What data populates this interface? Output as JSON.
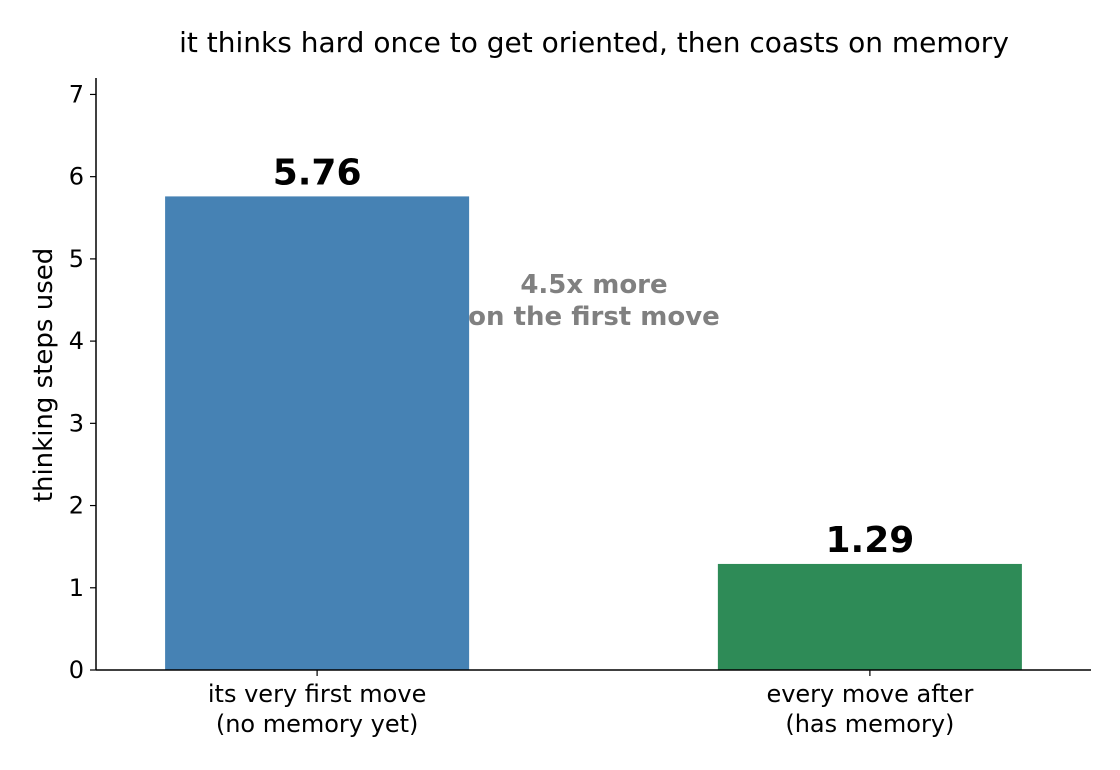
{
  "chart_data": {
    "type": "bar",
    "title": "it thinks hard once to get oriented, then coasts on memory",
    "xlabel": "",
    "ylabel": "thinking steps used",
    "ylim": [
      0,
      7.2
    ],
    "yticks": [
      0,
      1,
      2,
      3,
      4,
      5,
      6,
      7
    ],
    "categories": [
      [
        "its very first move",
        "(no memory yet)"
      ],
      [
        "every move after",
        "(has memory)"
      ]
    ],
    "values": [
      5.76,
      1.29
    ],
    "value_labels": [
      "5.76",
      "1.29"
    ],
    "colors": [
      "#4682b4",
      "#2e8b57"
    ],
    "annotation": [
      "4.5x more",
      "on the first move"
    ],
    "grid": false,
    "legend": "none"
  }
}
